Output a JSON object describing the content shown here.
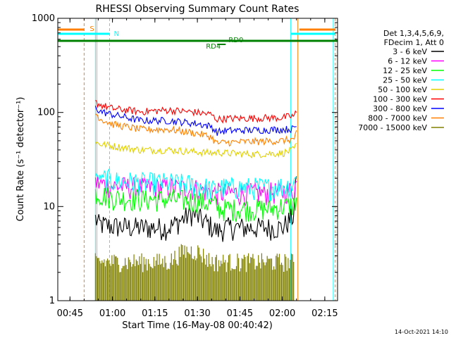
{
  "chart_data": {
    "type": "line",
    "title": "RHESSI Observing Summary Count Rates",
    "xlabel": "Start Time (16-May-08 00:40:42)",
    "ylabel": "Count Rate (s⁻¹ detector⁻¹)",
    "yscale": "log",
    "ylim": [
      1,
      1000
    ],
    "xlim": [
      "00:40:42",
      "02:19:30"
    ],
    "x_ticks": [
      "00:45",
      "01:00",
      "01:15",
      "01:30",
      "01:45",
      "02:00",
      "02:15"
    ],
    "y_ticks": [
      "1",
      "10",
      "100",
      "1000"
    ],
    "legend_header": [
      "Det 1,3,4,5,6,9,",
      "FDecim 1, Att 0"
    ],
    "legend_placement": "right",
    "timestamp": "14-Oct-2021 14:10",
    "series": [
      {
        "name": "3 - 6 keV",
        "color": "#000000",
        "x": [
          "00:54",
          "00:55",
          "01:00",
          "01:10",
          "01:20",
          "01:28",
          "01:34",
          "01:37",
          "01:40",
          "01:50",
          "02:00",
          "02:04",
          "02:05"
        ],
        "y": [
          7.5,
          6.5,
          6.2,
          6.0,
          6.0,
          8.5,
          6.5,
          5.5,
          6.0,
          6.0,
          6.0,
          8.0,
          22
        ]
      },
      {
        "name": "6 - 12 keV",
        "color": "#ff00ff",
        "x": [
          "00:54",
          "01:00",
          "01:10",
          "01:20",
          "01:30",
          "01:36",
          "01:38",
          "01:45",
          "01:55",
          "02:04",
          "02:05"
        ],
        "y": [
          18,
          16.5,
          16,
          16,
          15.5,
          14,
          14,
          14,
          14,
          15,
          18
        ]
      },
      {
        "name": "12 - 25 keV",
        "color": "#00ff00",
        "x": [
          "00:54",
          "01:00",
          "01:10",
          "01:20",
          "01:30",
          "01:36",
          "01:38",
          "01:45",
          "01:55",
          "02:04",
          "02:05"
        ],
        "y": [
          14,
          12.5,
          12,
          12,
          11.5,
          10.5,
          9.5,
          9.5,
          9.5,
          10.5,
          12
        ]
      },
      {
        "name": "25 - 50 keV",
        "color": "#00ffff",
        "x": [
          "00:54",
          "01:00",
          "01:10",
          "01:20",
          "01:30",
          "01:36",
          "01:38",
          "01:45",
          "01:55",
          "02:04",
          "02:05"
        ],
        "y": [
          21,
          19,
          18,
          18,
          17,
          15,
          16,
          16,
          16,
          17,
          22
        ]
      },
      {
        "name": "50 - 100 keV",
        "color": "#e0d000",
        "x": [
          "00:54",
          "00:56",
          "01:00",
          "01:10",
          "01:20",
          "01:30",
          "01:36",
          "01:37",
          "01:40",
          "01:50",
          "02:00",
          "02:04",
          "02:05"
        ],
        "y": [
          48,
          46,
          44,
          40,
          40,
          38,
          37,
          38,
          37,
          36,
          37,
          40,
          45
        ]
      },
      {
        "name": "100 - 300 keV",
        "color": "#ff0000",
        "x": [
          "00:54",
          "00:56",
          "01:00",
          "01:10",
          "01:20",
          "01:30",
          "01:35",
          "01:36",
          "01:37",
          "01:40",
          "01:50",
          "02:00",
          "02:04",
          "02:05"
        ],
        "y": [
          128,
          120,
          110,
          102,
          106,
          100,
          95,
          88,
          85,
          86,
          87,
          88,
          92,
          100
        ]
      },
      {
        "name": "300 - 800 keV",
        "color": "#0000ff",
        "x": [
          "00:54",
          "00:56",
          "01:00",
          "01:10",
          "01:20",
          "01:30",
          "01:35",
          "01:36",
          "01:37",
          "01:40",
          "01:50",
          "02:00",
          "02:04",
          "02:05"
        ],
        "y": [
          112,
          102,
          95,
          82,
          82,
          76,
          71,
          65,
          62,
          64,
          65,
          66,
          67,
          72
        ]
      },
      {
        "name": "800 - 7000 keV",
        "color": "#ff8000",
        "x": [
          "00:54",
          "00:56",
          "01:00",
          "01:10",
          "01:20",
          "01:30",
          "01:35",
          "01:36",
          "01:37",
          "01:40",
          "01:50",
          "02:00",
          "02:04",
          "02:05"
        ],
        "y": [
          98,
          85,
          75,
          66,
          66,
          60,
          55,
          50,
          47,
          48,
          49,
          50,
          52,
          60
        ]
      },
      {
        "name": "7000 - 15000 keV",
        "color": "#808000",
        "x": [
          "00:54",
          "01:00",
          "01:10",
          "01:20",
          "01:25",
          "01:30",
          "01:35",
          "01:40",
          "01:50",
          "02:00",
          "02:04"
        ],
        "y": [
          2.0,
          2.0,
          2.0,
          2.0,
          2.6,
          2.6,
          2.0,
          2.0,
          2.0,
          2.0,
          2.0
        ]
      }
    ],
    "annotations": [
      {
        "label": "S",
        "color": "#ff8000"
      },
      {
        "label": "N",
        "color": "#00ffff"
      },
      {
        "label": "RD0",
        "color": "#008000"
      },
      {
        "label": "RD4",
        "color": "#008000"
      }
    ]
  }
}
